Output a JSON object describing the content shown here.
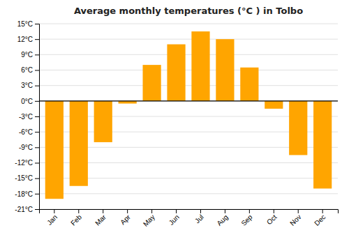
{
  "chart_data": {
    "type": "bar",
    "title": "Average monthly temperatures (°C ) in Tolbo",
    "categories": [
      "Jan",
      "Feb",
      "Mar",
      "Apr",
      "May",
      "Jun",
      "Jul",
      "Aug",
      "Sep",
      "Oct",
      "Nov",
      "Dec"
    ],
    "values": [
      -19,
      -16.5,
      -8,
      -0.5,
      7,
      11,
      13.5,
      12,
      6.5,
      -1.5,
      -10.5,
      -17
    ],
    "color": "#FFA500",
    "ylim": [
      -21,
      15
    ],
    "yticks": [
      {
        "value": -21,
        "label": "-21°C"
      },
      {
        "value": -18,
        "label": "-18°C"
      },
      {
        "value": -15,
        "label": "-15°C"
      },
      {
        "value": -12,
        "label": "-12°C"
      },
      {
        "value": -9,
        "label": "-9°C"
      },
      {
        "value": -6,
        "label": "-6°C"
      },
      {
        "value": -3,
        "label": "-3°C"
      },
      {
        "value": 0,
        "label": "0°C"
      },
      {
        "value": 3,
        "label": "3°C"
      },
      {
        "value": 6,
        "label": "6°C"
      },
      {
        "value": 9,
        "label": "9°C"
      },
      {
        "value": 12,
        "label": "12°C"
      },
      {
        "value": 15,
        "label": "15°C"
      }
    ],
    "grid": true
  }
}
